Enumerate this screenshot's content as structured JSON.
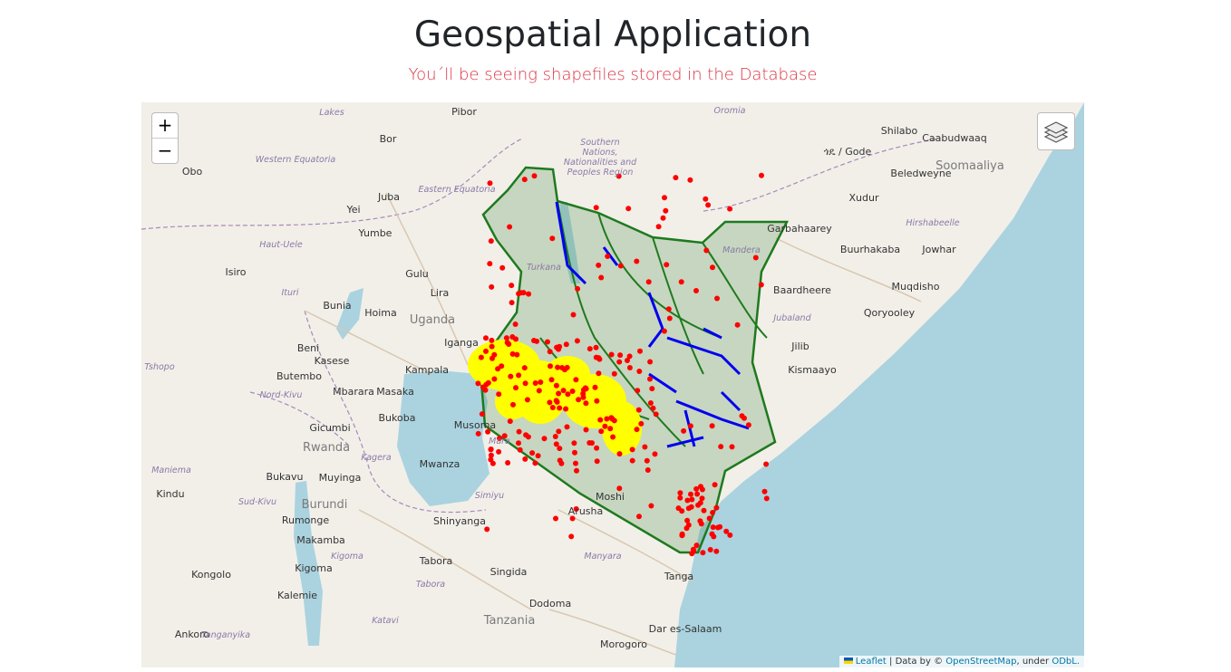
{
  "header": {
    "title": "Geospatial Application",
    "subtitle": "You´ll be seeing shapefiles stored in the Database"
  },
  "controls": {
    "zoom_in": "+",
    "zoom_out": "−"
  },
  "attribution": {
    "leaflet": "Leaflet",
    "text1": "| Data by ©",
    "osm": "OpenStreetMap",
    "text2": ", under",
    "odbl": "ODbL."
  },
  "map": {
    "countries": [
      "Uganda",
      "Rwanda",
      "Burundi",
      "Tanzania",
      "Soomaaliya"
    ],
    "cities": [
      "Pibor",
      "Bor",
      "Obo",
      "Juba",
      "Yei",
      "Yumbe",
      "Isiro",
      "Gulu",
      "Lira",
      "Bunia",
      "Hoima",
      "Beni",
      "Kasese",
      "Kampala",
      "Butembo",
      "Mbarara",
      "Masaka",
      "Iganga",
      "Bukoba",
      "Musoma",
      "Gicumbi",
      "Mwanza",
      "Bukavu",
      "Muyinga",
      "Kindu",
      "Rumonge",
      "Makamba",
      "Shinyanga",
      "Arusha",
      "Kigoma",
      "Tabora",
      "Kongolo",
      "Kalemie",
      "Singida",
      "Dodoma",
      "Ankoro",
      "Dar es-Salaam",
      "Morogoro",
      "Tanga",
      "Shilabo",
      "Caabudwaaq",
      "ጎዴ / Gode",
      "Beledweyne",
      "Xudur",
      "Buurhakaba",
      "Jowhar",
      "Muqdisho",
      "Baardheere",
      "Qoryooley",
      "Jilib",
      "Kismaayo",
      "Garbahaarey",
      "Moshi"
    ],
    "regions": [
      "Lakes",
      "Western Equatoria",
      "Eastern Equatoria",
      "Haut-Uele",
      "Ituri",
      "Tshopo",
      "Nord-Kivu",
      "Mara",
      "Kagera",
      "Maniema",
      "Sud-Kivu",
      "Simiyu",
      "Kigoma",
      "Manyara",
      "Tabora",
      "Katavi",
      "Tanganyika",
      "Jubaland",
      "Hirshabeelle",
      "Mandera",
      "Turkana",
      "Oromia",
      "Southern Nations, Nationalities and Peoples Region"
    ]
  }
}
